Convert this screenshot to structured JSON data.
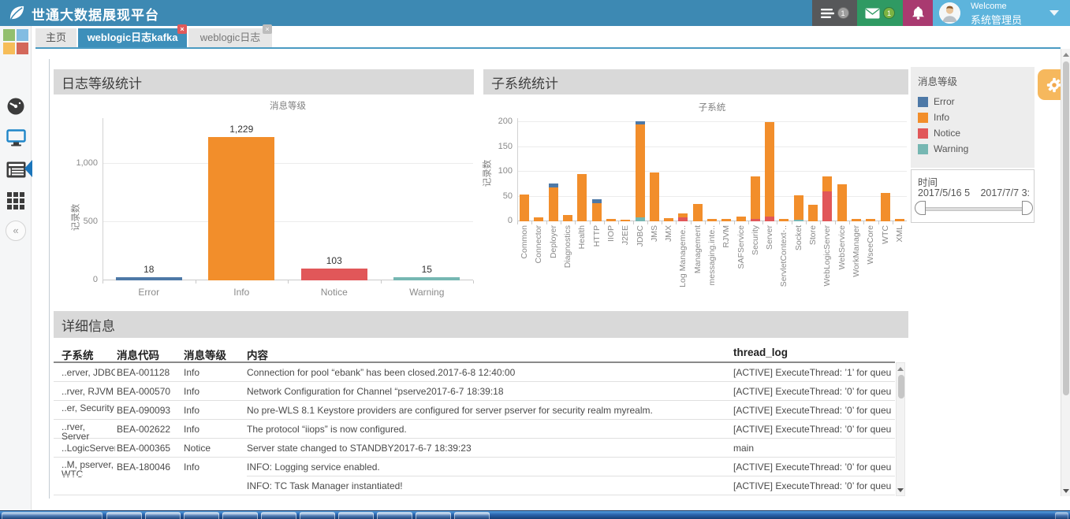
{
  "header": {
    "app_title": "世通大数据展现平台",
    "menu_badge": "1",
    "mail_badge": "1",
    "welcome": "Welcome",
    "username": "系统管理员",
    "icons": [
      "leaf-logo",
      "menu-list-icon",
      "mail-icon",
      "bell-icon",
      "avatar",
      "caret-down-icon"
    ]
  },
  "sidebar": {
    "icons": [
      "app-squares-logo",
      "dashboard-gauge-icon",
      "monitor-icon",
      "report-list-icon",
      "grid-menu-icon",
      "collapse-chevrons-icon"
    ]
  },
  "tabs": [
    {
      "label": "主页",
      "active": false,
      "closable": false
    },
    {
      "label": "weblogic日志kafka",
      "active": true,
      "closable": true
    },
    {
      "label": "weblogic日志",
      "active": false,
      "closable": true
    }
  ],
  "panels": {
    "log_level_title": "日志等级统计",
    "subsystem_title": "子系统统计",
    "detail_title": "详细信息"
  },
  "chart_data": [
    {
      "type": "bar",
      "title": "消息等级",
      "ylabel": "记录数",
      "categories": [
        "Error",
        "Info",
        "Notice",
        "Warning"
      ],
      "values": [
        18,
        1229,
        103,
        15
      ],
      "value_labels": [
        "18",
        "1,229",
        "103",
        "15"
      ],
      "colors": [
        "#4e79a7",
        "#f28e2b",
        "#e15759",
        "#76b7b2"
      ],
      "yticks": [
        0,
        500,
        1000
      ],
      "ylim": [
        0,
        1460
      ],
      "grid": true,
      "legend_position": "none"
    },
    {
      "type": "stacked-bar",
      "title": "子系统",
      "ylabel": "记录数",
      "yticks": [
        0,
        50,
        100,
        150,
        200
      ],
      "ylim": [
        0,
        208
      ],
      "grid": true,
      "series_colors": {
        "Error": "#4e79a7",
        "Info": "#f28e2b",
        "Notice": "#e15759",
        "Warning": "#76b7b2"
      },
      "categories": [
        "Common",
        "Connector",
        "Deployer",
        "Diagnostics",
        "Health",
        "HTTP",
        "IIOP",
        "J2EE",
        "JDBC",
        "JMS",
        "JMX",
        "Log Manageme..",
        "Management",
        "messaging.inte..",
        "RJVM",
        "SAFService",
        "Security",
        "Server",
        "ServletContext-..",
        "Socket",
        "Store",
        "WebLogicServer",
        "WebService",
        "WorkManager",
        "WseeCore",
        "WTC",
        "XML"
      ],
      "bars": [
        [
          [
            "Info",
            54
          ]
        ],
        [
          [
            "Info",
            8
          ]
        ],
        [
          [
            "Info",
            68
          ],
          [
            "Error",
            8
          ]
        ],
        [
          [
            "Info",
            12
          ]
        ],
        [
          [
            "Info",
            95
          ]
        ],
        [
          [
            "Info",
            36
          ],
          [
            "Error",
            8
          ]
        ],
        [
          [
            "Info",
            4
          ]
        ],
        [
          [
            "Info",
            3
          ]
        ],
        [
          [
            "Warning",
            8
          ],
          [
            "Info",
            187
          ],
          [
            "Error",
            7
          ]
        ],
        [
          [
            "Info",
            98
          ]
        ],
        [
          [
            "Info",
            6
          ]
        ],
        [
          [
            "Notice",
            8
          ],
          [
            "Info",
            8
          ]
        ],
        [
          [
            "Info",
            35
          ]
        ],
        [
          [
            "Info",
            4
          ]
        ],
        [
          [
            "Info",
            5
          ]
        ],
        [
          [
            "Info",
            10
          ]
        ],
        [
          [
            "Notice",
            5
          ],
          [
            "Info",
            85
          ]
        ],
        [
          [
            "Notice",
            10
          ],
          [
            "Info",
            190
          ]
        ],
        [
          [
            "Info",
            5
          ]
        ],
        [
          [
            "Warning",
            2
          ],
          [
            "Info",
            50
          ]
        ],
        [
          [
            "Info",
            33
          ]
        ],
        [
          [
            "Notice",
            60
          ],
          [
            "Info",
            31
          ]
        ],
        [
          [
            "Info",
            75
          ]
        ],
        [
          [
            "Info",
            5
          ]
        ],
        [
          [
            "Info",
            4
          ]
        ],
        [
          [
            "Info",
            57
          ]
        ],
        [
          [
            "Info",
            4
          ]
        ]
      ]
    }
  ],
  "legend": {
    "title": "消息等级",
    "items": [
      {
        "label": "Error",
        "color": "#4e79a7"
      },
      {
        "label": "Info",
        "color": "#f28e2b"
      },
      {
        "label": "Notice",
        "color": "#e15759"
      },
      {
        "label": "Warning",
        "color": "#76b7b2"
      }
    ]
  },
  "time_filter": {
    "title": "时间",
    "start_label": "2017/5/16 5",
    "end_label": "2017/7/7 3:"
  },
  "table": {
    "columns": [
      "子系统",
      "消息代码",
      "消息等级",
      "内容",
      "thread_log"
    ],
    "rows": [
      {
        "subsystem": "..erver, JDBC",
        "code": "BEA-001128",
        "level": "Info",
        "content": "Connection for pool “ebank” has been closed.2017-6-8 12:40:00",
        "thread": "[ACTIVE] ExecuteThread: ’1’ for queu",
        "partial": false
      },
      {
        "subsystem": "..rver, RJVM",
        "code": "BEA-000570",
        "level": "Info",
        "content": "Network Configuration for Channel “pserve2017-6-7 18:39:18",
        "thread": "[ACTIVE] ExecuteThread: ’0’ for queu",
        "partial": false
      },
      {
        "subsystem": "..er, Security",
        "code": "BEA-090093",
        "level": "Info",
        "content": "No pre-WLS 8.1 Keystore providers are configured for server pserver for security realm myrealm.",
        "thread": "[ACTIVE] ExecuteThread: ’0’ for queu",
        "partial": false
      },
      {
        "subsystem": "..rver, Server",
        "code": "BEA-002622",
        "level": "Info",
        "content": "The protocol “iiops” is now configured.",
        "thread": "[ACTIVE] ExecuteThread: ’0’ for queu",
        "partial": false
      },
      {
        "subsystem": "..LogicServer",
        "code": "BEA-000365",
        "level": "Notice",
        "content": "Server state changed to STANDBY2017-6-7 18:39:23",
        "thread": "main",
        "partial": false
      },
      {
        "subsystem": "..M, pserver, WTC",
        "code": "BEA-180046",
        "level": "Info",
        "content": "INFO: Logging service enabled.",
        "thread": "[ACTIVE] ExecuteThread: ’0’ for queu",
        "partial": false
      },
      {
        "subsystem": "",
        "code": "",
        "level": "",
        "content": "INFO: TC Task Manager instantiated!",
        "thread": "[ACTIVE] ExecuteThread: ’0’ for queu",
        "partial": true
      }
    ]
  }
}
